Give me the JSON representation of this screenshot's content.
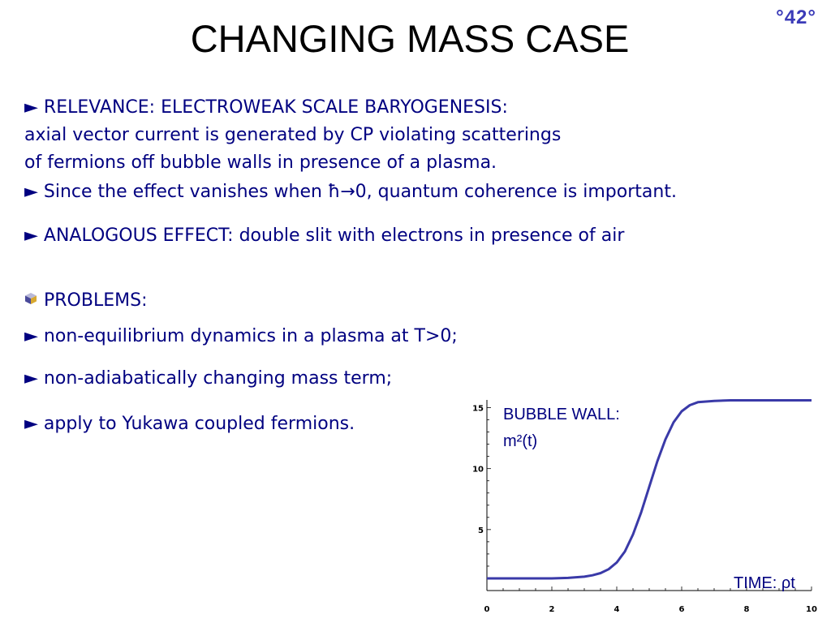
{
  "slide_number": "°42°",
  "title": "CHANGING MASS CASE",
  "body": {
    "relevance_heading": "► RELEVANCE: ELECTROWEAK SCALE BARYOGENESIS:",
    "relevance_line_1": "axial vector current is generated by CP violating scatterings",
    "relevance_line_2": "of fermions off bubble walls in presence of a plasma.",
    "coherence_line": "► Since the effect vanishes when ħ→0, quantum coherence is important.",
    "analogous_line": "► ANALOGOUS EFFECT: double slit with electrons in presence of air",
    "problems_heading": "PROBLEMS:",
    "problems": [
      "► non-equilibrium dynamics in a plasma at T>0;",
      "► non-adiabatically changing mass term;",
      "► apply to Yukawa coupled fermions."
    ]
  },
  "plot_labels": {
    "curve_title_line_1": "BUBBLE WALL:",
    "curve_title_line_2": "m²(t)",
    "time_label": "TIME: ρt"
  },
  "colors": {
    "text": "#000080",
    "accent": "#3b3bb8",
    "curve": "#3a3aa8"
  },
  "chart_data": {
    "type": "line",
    "title": "BUBBLE WALL: m²(t)",
    "xlabel": "TIME: ρt",
    "ylabel": "",
    "x_ticks": [
      "0",
      "2",
      "4",
      "6",
      "8",
      "10"
    ],
    "y_ticks": [
      "5",
      "10",
      "15"
    ],
    "xlim": [
      0,
      10
    ],
    "ylim": [
      0,
      15.5
    ],
    "grid": false,
    "series": [
      {
        "x": [
          0,
          1,
          2,
          2.5,
          3,
          3.25,
          3.5,
          3.75,
          4,
          4.25,
          4.5,
          4.75,
          5,
          5.25,
          5.5,
          5.75,
          6,
          6.25,
          6.5,
          7,
          7.5,
          8,
          9,
          10
        ],
        "y": [
          1,
          1,
          1,
          1.04,
          1.14,
          1.25,
          1.43,
          1.75,
          2.3,
          3.2,
          4.6,
          6.4,
          8.5,
          10.6,
          12.4,
          13.8,
          14.7,
          15.2,
          15.45,
          15.55,
          15.6,
          15.6,
          15.6,
          15.6
        ]
      }
    ]
  }
}
